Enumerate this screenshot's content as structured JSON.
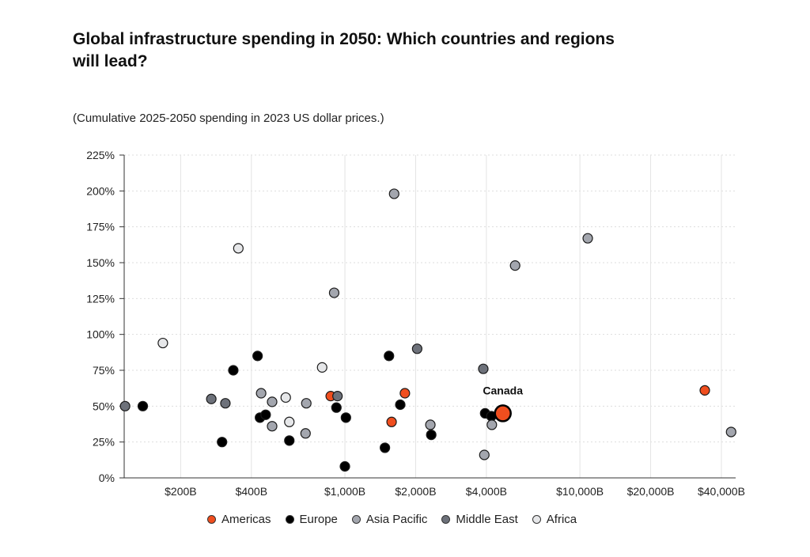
{
  "header": {
    "title": "Global infrastructure spending in 2050: Which countries and regions will lead?",
    "subtitle": "(Cumulative 2025-2050 spending in 2023 US dollar prices.)"
  },
  "chart_data": {
    "type": "scatter",
    "x_scale": "log",
    "xlim": [
      115,
      46000
    ],
    "ylim": [
      0,
      225
    ],
    "x_ticks": [
      {
        "value": 200,
        "label": "$200B"
      },
      {
        "value": 400,
        "label": "$400B"
      },
      {
        "value": 1000,
        "label": "$1,000B"
      },
      {
        "value": 2000,
        "label": "$2,000B"
      },
      {
        "value": 4000,
        "label": "$4,000B"
      },
      {
        "value": 10000,
        "label": "$10,000B"
      },
      {
        "value": 20000,
        "label": "$20,000B"
      },
      {
        "value": 40000,
        "label": "$40,000B"
      }
    ],
    "y_ticks": [
      {
        "value": 0,
        "label": "0%"
      },
      {
        "value": 25,
        "label": "25%"
      },
      {
        "value": 50,
        "label": "50%"
      },
      {
        "value": 75,
        "label": "75%"
      },
      {
        "value": 100,
        "label": "100%"
      },
      {
        "value": 125,
        "label": "125%"
      },
      {
        "value": 150,
        "label": "150%"
      },
      {
        "value": 175,
        "label": "175%"
      },
      {
        "value": 200,
        "label": "200%"
      },
      {
        "value": 225,
        "label": "225%"
      }
    ],
    "grid": true,
    "legend_position": "bottom",
    "series": [
      {
        "name": "Americas",
        "color": "#f04e1e",
        "points": [
          {
            "x": 870,
            "y": 57
          },
          {
            "x": 1580,
            "y": 39
          },
          {
            "x": 1800,
            "y": 59
          },
          {
            "x": 34000,
            "y": 61
          },
          {
            "x": 4700,
            "y": 45,
            "label": "Canada",
            "highlight": true
          }
        ]
      },
      {
        "name": "Europe",
        "color": "#000000",
        "points": [
          {
            "x": 138,
            "y": 50
          },
          {
            "x": 300,
            "y": 25
          },
          {
            "x": 335,
            "y": 75
          },
          {
            "x": 425,
            "y": 85
          },
          {
            "x": 435,
            "y": 42
          },
          {
            "x": 460,
            "y": 44
          },
          {
            "x": 580,
            "y": 26
          },
          {
            "x": 920,
            "y": 49
          },
          {
            "x": 1000,
            "y": 8
          },
          {
            "x": 1010,
            "y": 42
          },
          {
            "x": 1480,
            "y": 21
          },
          {
            "x": 1540,
            "y": 85
          },
          {
            "x": 1720,
            "y": 51
          },
          {
            "x": 2330,
            "y": 30
          },
          {
            "x": 3950,
            "y": 45
          },
          {
            "x": 4200,
            "y": 43
          }
        ]
      },
      {
        "name": "Asia Pacific",
        "color": "#a3a6ae",
        "points": [
          {
            "x": 440,
            "y": 59
          },
          {
            "x": 490,
            "y": 36
          },
          {
            "x": 490,
            "y": 53
          },
          {
            "x": 680,
            "y": 31
          },
          {
            "x": 685,
            "y": 52
          },
          {
            "x": 900,
            "y": 129
          },
          {
            "x": 1620,
            "y": 198
          },
          {
            "x": 2310,
            "y": 37
          },
          {
            "x": 3920,
            "y": 16
          },
          {
            "x": 4220,
            "y": 37
          },
          {
            "x": 5300,
            "y": 148
          },
          {
            "x": 10800,
            "y": 167
          },
          {
            "x": 44000,
            "y": 32
          }
        ]
      },
      {
        "name": "Middle East",
        "color": "#6d717a",
        "points": [
          {
            "x": 116,
            "y": 50
          },
          {
            "x": 270,
            "y": 55
          },
          {
            "x": 310,
            "y": 52
          },
          {
            "x": 930,
            "y": 57
          },
          {
            "x": 2030,
            "y": 90
          },
          {
            "x": 3880,
            "y": 76
          }
        ]
      },
      {
        "name": "Africa",
        "color": "#e6e7e9",
        "points": [
          {
            "x": 168,
            "y": 94
          },
          {
            "x": 352,
            "y": 160
          },
          {
            "x": 560,
            "y": 56
          },
          {
            "x": 580,
            "y": 39
          },
          {
            "x": 800,
            "y": 77
          }
        ]
      }
    ]
  }
}
